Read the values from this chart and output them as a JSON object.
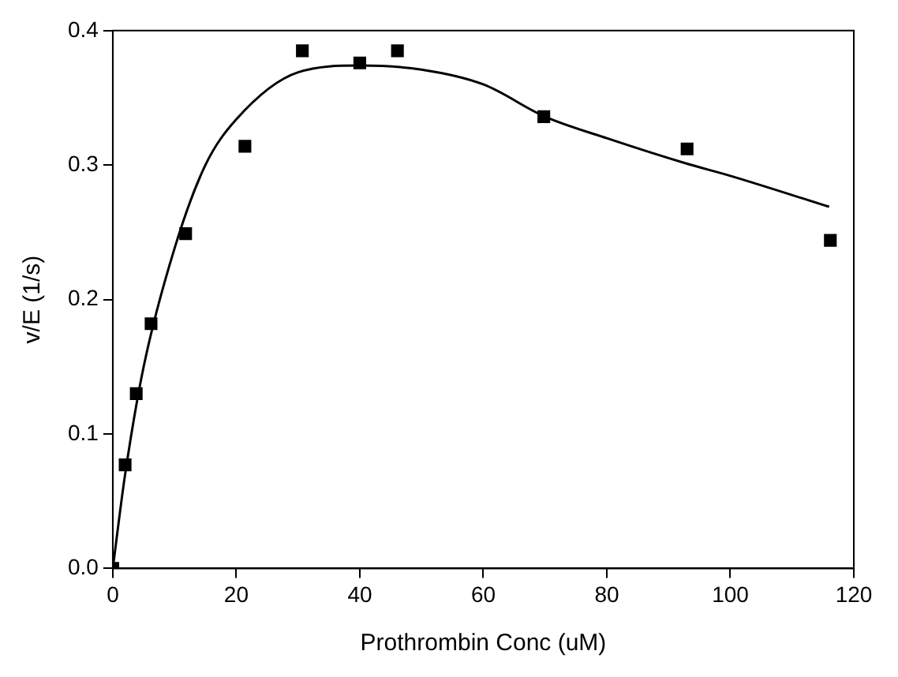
{
  "chart_data": {
    "type": "scatter",
    "xlabel": "Prothrombin Conc (uM)",
    "ylabel": "v/E (1/s)",
    "xlim": [
      0,
      120
    ],
    "xticks": [
      0,
      20,
      40,
      60,
      80,
      100,
      120
    ],
    "ylim": [
      0,
      0.4
    ],
    "yticks": [
      {
        "value": 0,
        "label": "0.0"
      },
      0.1,
      0.2,
      0.3,
      0.4
    ],
    "grid": false,
    "legend": false,
    "marker": "square",
    "series": [
      {
        "color": "#000000",
        "x": [
          0,
          2.0,
          3.8,
          6.2,
          11.8,
          21.4,
          30.7,
          40.0,
          46.1,
          69.8,
          93.0,
          116.2
        ],
        "values": [
          0,
          0.077,
          0.13,
          0.182,
          0.249,
          0.314,
          0.385,
          0.376,
          0.385,
          0.336,
          0.312,
          0.244
        ]
      },
      {
        "type": "line",
        "color": "#000000",
        "marker": "none",
        "line_style": "solid",
        "x": [
          0,
          2,
          5,
          10,
          15,
          20,
          30,
          40,
          50,
          60,
          70,
          80,
          93,
          100,
          116
        ],
        "values": [
          0,
          0.07,
          0.15,
          0.238,
          0.3,
          0.334,
          0.369,
          0.374,
          0.371,
          0.36,
          0.336,
          0.32,
          0.301,
          0.292,
          0.269
        ]
      }
    ]
  }
}
